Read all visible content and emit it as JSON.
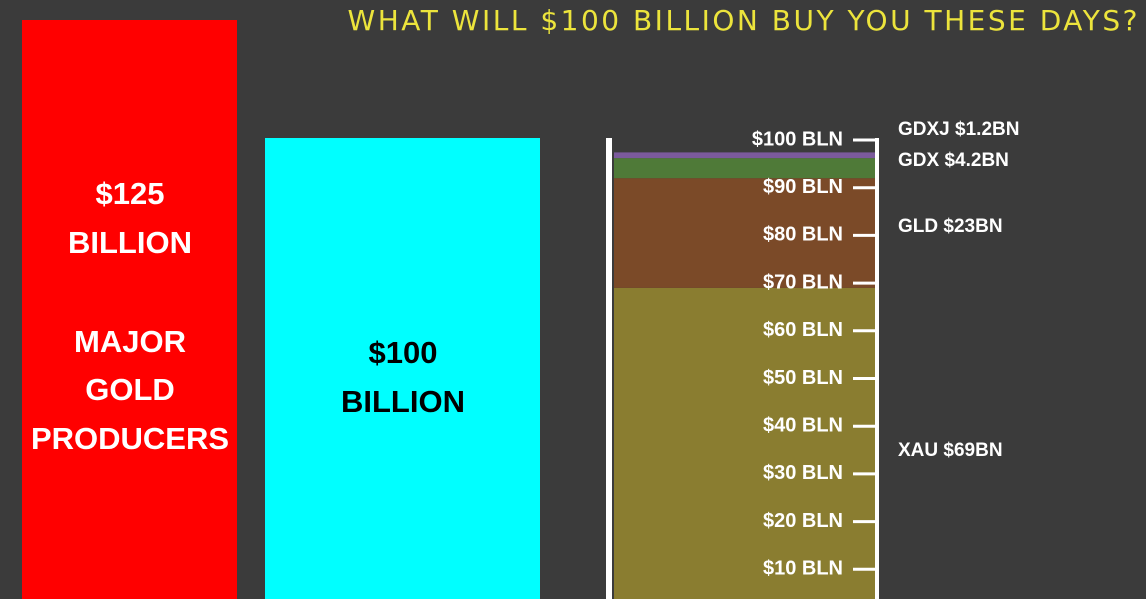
{
  "title": "WHAT WILL $100 BILLION BUY YOU THESE DAYS?",
  "panels": [
    {
      "lines": [
        "$125",
        "BILLION"
      ],
      "note_lines": [
        "MAJOR",
        "GOLD",
        "PRODUCERS"
      ]
    },
    {
      "lines": [
        "$100",
        "BILLION"
      ]
    }
  ],
  "chart_data": {
    "type": "stacked_bar",
    "series": [
      {
        "name": "XAU",
        "values": [
          69
        ],
        "value_labels": [
          "$69BN"
        ],
        "color": "#8a7d30"
      },
      {
        "name": "GLD",
        "values": [
          23
        ],
        "value_labels": [
          "$23BN"
        ],
        "color": "#7b4a28"
      },
      {
        "name": "GDX",
        "values": [
          4.2
        ],
        "value_labels": [
          "$4.2BN"
        ],
        "color": "#4f7a38"
      },
      {
        "name": "GDXJ",
        "values": [
          1.2
        ],
        "value_labels": [
          "$1.2BN"
        ],
        "color": "#7b5a9c"
      }
    ],
    "ylim": [
      0,
      100
    ],
    "yticks": [
      {
        "value": 10,
        "label": "$10 BLN"
      },
      {
        "value": 20,
        "label": "$20 BLN"
      },
      {
        "value": 30,
        "label": "$30 BLN"
      },
      {
        "value": 40,
        "label": "$40 BLN"
      },
      {
        "value": 50,
        "label": "$50 BLN"
      },
      {
        "value": 60,
        "label": "$60 BLN"
      },
      {
        "value": 70,
        "label": "$70 BLN"
      },
      {
        "value": 80,
        "label": "$80 BLN"
      },
      {
        "value": 90,
        "label": "$90 BLN"
      },
      {
        "value": 100,
        "label": "$100 BLN"
      }
    ]
  }
}
